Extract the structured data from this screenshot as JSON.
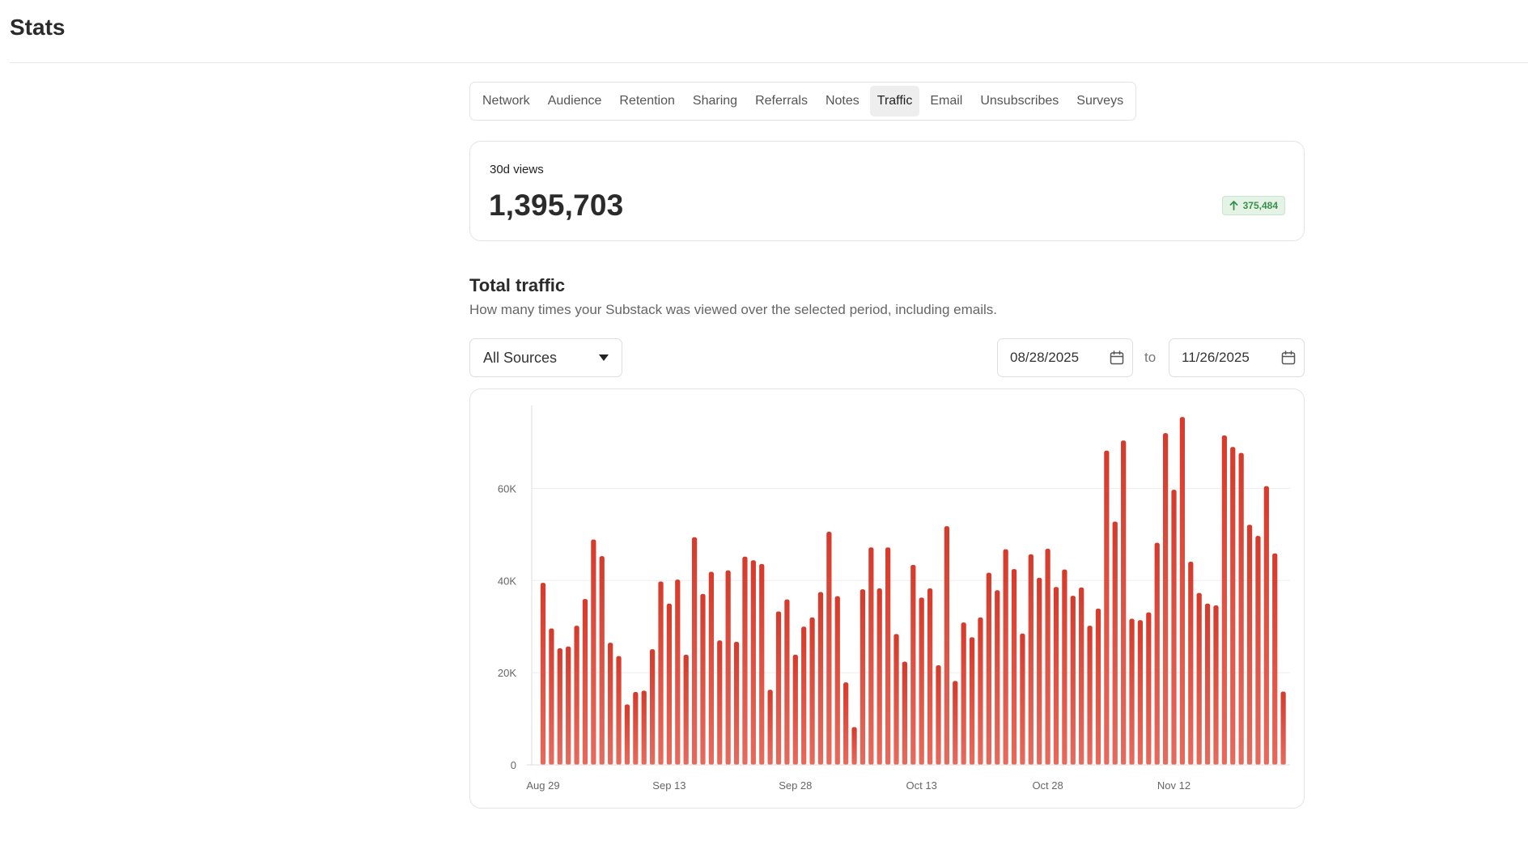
{
  "page": {
    "title": "Stats"
  },
  "tabs": [
    {
      "label": "Network",
      "active": false
    },
    {
      "label": "Audience",
      "active": false
    },
    {
      "label": "Retention",
      "active": false
    },
    {
      "label": "Sharing",
      "active": false
    },
    {
      "label": "Referrals",
      "active": false
    },
    {
      "label": "Notes",
      "active": false
    },
    {
      "label": "Traffic",
      "active": true
    },
    {
      "label": "Email",
      "active": false
    },
    {
      "label": "Unsubscribes",
      "active": false
    },
    {
      "label": "Surveys",
      "active": false
    }
  ],
  "summary": {
    "label": "30d views",
    "value": "1,395,703",
    "delta": "375,484",
    "delta_icon": "arrow-up-icon",
    "delta_color": "#3a8f4b"
  },
  "section": {
    "title": "Total traffic",
    "subtitle": "How many times your Substack was viewed over the selected period, including emails."
  },
  "filters": {
    "source_selected": "All Sources",
    "date_start": "08/28/2025",
    "to_label": "to",
    "date_end": "11/26/2025"
  },
  "colors": {
    "bar": "#d93a2b",
    "bar_light": "#e56a5c",
    "grid": "#eeeeee",
    "axis": "#dddddd"
  },
  "chart_data": {
    "type": "bar",
    "title": "",
    "xlabel": "",
    "ylabel": "",
    "ylim": [
      0,
      78000
    ],
    "yticks": [
      {
        "value": 0,
        "label": "0"
      },
      {
        "value": 20000,
        "label": "20K"
      },
      {
        "value": 40000,
        "label": "40K"
      },
      {
        "value": 60000,
        "label": "60K"
      }
    ],
    "xticks": [
      {
        "index": 0,
        "label": "Aug 29"
      },
      {
        "index": 15,
        "label": "Sep 13"
      },
      {
        "index": 30,
        "label": "Sep 28"
      },
      {
        "index": 45,
        "label": "Oct 13"
      },
      {
        "index": 60,
        "label": "Oct 28"
      },
      {
        "index": 75,
        "label": "Nov 12"
      }
    ],
    "grid": true,
    "start_date": "2025-08-29",
    "end_date": "2025-11-26",
    "values": [
      39500,
      29600,
      25300,
      25700,
      30200,
      36000,
      48900,
      45300,
      26500,
      23600,
      13100,
      15800,
      16100,
      25100,
      39800,
      35000,
      40200,
      23900,
      49400,
      37100,
      41900,
      27000,
      42200,
      26700,
      45200,
      44400,
      43600,
      16300,
      33300,
      35900,
      23900,
      30000,
      32000,
      37500,
      50600,
      36600,
      17900,
      8200,
      38100,
      47200,
      38300,
      47200,
      28400,
      22400,
      43400,
      36300,
      38300,
      21600,
      51800,
      18200,
      30900,
      27700,
      32000,
      41700,
      37900,
      46800,
      42500,
      28500,
      45700,
      40600,
      46900,
      38600,
      42400,
      36700,
      38500,
      30200,
      33900,
      68200,
      52800,
      70400,
      31700,
      31400,
      33100,
      48200,
      72000,
      59700,
      75500,
      44100,
      37300,
      35000,
      34600,
      71500,
      69000,
      67700,
      52100,
      49700,
      60500,
      45900,
      15900
    ]
  }
}
